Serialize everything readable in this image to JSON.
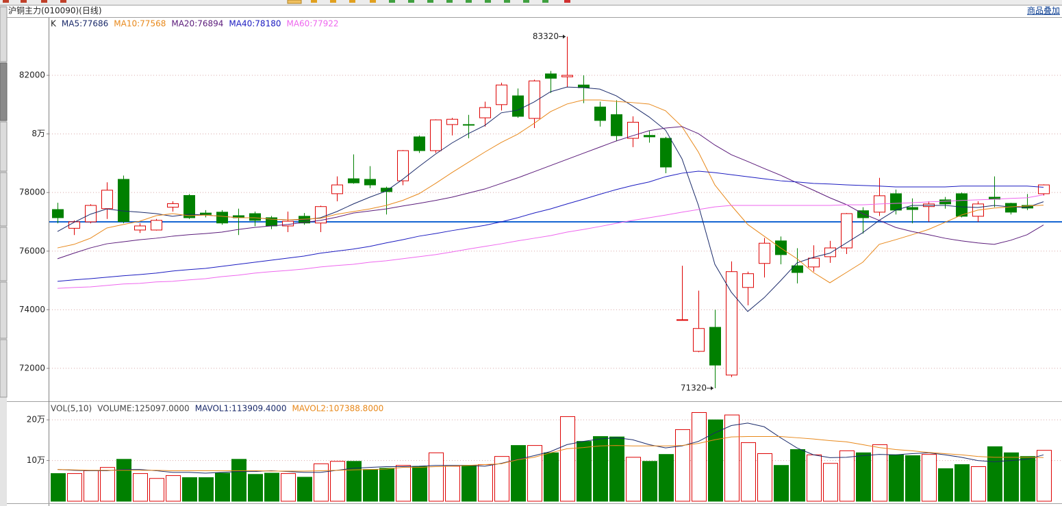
{
  "header": {
    "title": "沪铜主力(010090)(日线)",
    "overlay_button": "商品叠加"
  },
  "chart_data": [
    {
      "type": "candlestick",
      "label": "K",
      "open": [
        77420,
        76780,
        77000,
        77450,
        78450,
        76720,
        76720,
        77500,
        77900,
        77300,
        77330,
        77210,
        77280,
        77140,
        76860,
        77190,
        76960,
        77960,
        78470,
        78450,
        78150,
        78400,
        79900,
        79430,
        80320,
        80320,
        80550,
        81000,
        81300,
        80530,
        82050,
        81950,
        81670,
        80920,
        80660,
        79850,
        79950,
        79850,
        73640,
        72580,
        73400,
        71770,
        74760,
        75580,
        76350,
        75500,
        75460,
        75810,
        76110,
        77380,
        77330,
        77960,
        77490,
        77520,
        77750,
        77960,
        77190,
        77840,
        77630,
        77560,
        77960
      ],
      "high": [
        77650,
        77050,
        77600,
        78350,
        78580,
        76950,
        77100,
        77700,
        77950,
        77400,
        77400,
        77450,
        77350,
        77200,
        77350,
        77300,
        77550,
        78550,
        79300,
        78900,
        78200,
        79450,
        79950,
        80500,
        80550,
        80650,
        81100,
        81750,
        81550,
        81850,
        82150,
        83320,
        82000,
        81100,
        81150,
        80600,
        80100,
        79900,
        75500,
        74650,
        74000,
        75650,
        75300,
        76450,
        76500,
        76100,
        76200,
        76350,
        77300,
        77500,
        78500,
        78100,
        77800,
        77700,
        77850,
        78000,
        77700,
        78550,
        77650,
        77950,
        78280
      ],
      "low": [
        76950,
        76550,
        76950,
        77100,
        76950,
        76620,
        76700,
        77350,
        77100,
        77150,
        76900,
        76550,
        76850,
        76750,
        76650,
        76900,
        76650,
        77700,
        78300,
        78150,
        77250,
        78250,
        79350,
        79350,
        79950,
        79850,
        80250,
        80800,
        80550,
        80200,
        81400,
        81600,
        81050,
        80250,
        79750,
        79550,
        79700,
        78660,
        73640,
        72550,
        71320,
        71700,
        74150,
        75100,
        75550,
        74900,
        75300,
        75600,
        75900,
        76600,
        77200,
        77250,
        76950,
        77000,
        77450,
        77150,
        77000,
        77500,
        77250,
        77400,
        77900
      ],
      "close": [
        77140,
        77000,
        77560,
        78080,
        77010,
        76860,
        77050,
        77620,
        77140,
        77250,
        76960,
        77140,
        77050,
        76860,
        77020,
        76960,
        77520,
        78260,
        78330,
        78260,
        78030,
        79430,
        79430,
        80480,
        80500,
        80300,
        80900,
        81670,
        80600,
        81810,
        81900,
        82000,
        81580,
        80460,
        79940,
        80400,
        79900,
        78870,
        73660,
        73360,
        72110,
        75300,
        75230,
        76270,
        75880,
        75270,
        75760,
        76110,
        77280,
        77140,
        77890,
        77400,
        77420,
        77610,
        77610,
        77190,
        77610,
        77770,
        77330,
        77470,
        78260
      ],
      "up_color": "#dd0000",
      "down_color": "#008000",
      "ylim": [
        70900,
        83940
      ],
      "yticks": [
        72000,
        74000,
        76000,
        {
          "value": 80000,
          "label": "8万"
        },
        78000,
        82000
      ],
      "grid": true,
      "price_line": {
        "value": 77000,
        "color": "#1464d2"
      },
      "annotations": [
        {
          "value": 83320
        },
        {
          "value": 71320
        }
      ],
      "series": [
        {
          "name": "MA5:77686",
          "color": "#1a2a6a",
          "values": [
            76670,
            76980,
            77260,
            77440,
            77370,
            77330,
            77280,
            77190,
            77260,
            77230,
            77190,
            77140,
            77140,
            77090,
            77070,
            77070,
            77140,
            77350,
            77610,
            77840,
            78050,
            78450,
            78890,
            79310,
            79690,
            80010,
            80290,
            80720,
            80810,
            81090,
            81440,
            81600,
            81580,
            81530,
            81300,
            80950,
            80580,
            80130,
            79150,
            77560,
            75550,
            74600,
            73940,
            74410,
            74990,
            75600,
            75790,
            75930,
            76280,
            76630,
            77050,
            77400,
            77560,
            77560,
            77560,
            77510,
            77490,
            77560,
            77510,
            77490,
            77686
          ]
        },
        {
          "name": "MA10:77568",
          "color": "#e8881a",
          "values": [
            76110,
            76230,
            76440,
            76790,
            76910,
            77020,
            77210,
            77280,
            77210,
            77230,
            77190,
            77140,
            77140,
            77090,
            77070,
            77090,
            77120,
            77260,
            77350,
            77440,
            77560,
            77730,
            77960,
            78310,
            78680,
            79030,
            79380,
            79710,
            79990,
            80360,
            80760,
            81020,
            81160,
            81160,
            81110,
            81070,
            81020,
            80790,
            80250,
            79380,
            78260,
            77560,
            76910,
            76510,
            76110,
            75740,
            75270,
            74920,
            75270,
            75620,
            76230,
            76390,
            76560,
            76740,
            76980,
            77230,
            77400,
            77470,
            77510,
            77540,
            77568
          ]
        },
        {
          "name": "MA20:76894",
          "color": "#5a1a7a",
          "values": [
            75740,
            75930,
            76110,
            76250,
            76320,
            76390,
            76440,
            76510,
            76560,
            76600,
            76650,
            76740,
            76810,
            76860,
            76910,
            76980,
            77050,
            77160,
            77300,
            77370,
            77440,
            77540,
            77630,
            77730,
            77840,
            77980,
            78120,
            78310,
            78500,
            78710,
            78920,
            79130,
            79340,
            79550,
            79760,
            79940,
            80110,
            80200,
            80250,
            80010,
            79620,
            79290,
            79060,
            78820,
            78590,
            78330,
            78080,
            77820,
            77590,
            77280,
            77050,
            76810,
            76670,
            76560,
            76440,
            76350,
            76280,
            76230,
            76370,
            76560,
            76894
          ]
        },
        {
          "name": "MA40:78180",
          "color": "#1a1ac0",
          "values": [
            74970,
            75020,
            75060,
            75110,
            75160,
            75200,
            75250,
            75320,
            75370,
            75410,
            75480,
            75550,
            75620,
            75690,
            75760,
            75830,
            75930,
            76000,
            76070,
            76160,
            76280,
            76390,
            76510,
            76600,
            76700,
            76790,
            76880,
            77000,
            77140,
            77300,
            77440,
            77610,
            77770,
            77940,
            78100,
            78240,
            78360,
            78540,
            78660,
            78730,
            78680,
            78610,
            78540,
            78470,
            78400,
            78360,
            78310,
            78290,
            78260,
            78240,
            78220,
            78190,
            78190,
            78190,
            78190,
            78220,
            78220,
            78220,
            78220,
            78220,
            78180
          ]
        },
        {
          "name": "MA60:77922",
          "color": "#ee66ee",
          "values": [
            74730,
            74760,
            74780,
            74830,
            74880,
            74900,
            74950,
            74970,
            75020,
            75060,
            75130,
            75180,
            75250,
            75300,
            75340,
            75390,
            75460,
            75510,
            75550,
            75620,
            75670,
            75740,
            75810,
            75880,
            75970,
            76070,
            76160,
            76250,
            76350,
            76440,
            76530,
            76650,
            76740,
            76840,
            76950,
            77050,
            77140,
            77230,
            77330,
            77420,
            77510,
            77560,
            77560,
            77560,
            77560,
            77560,
            77560,
            77560,
            77580,
            77580,
            77610,
            77630,
            77650,
            77680,
            77700,
            77730,
            77750,
            77770,
            77800,
            77820,
            77922
          ]
        }
      ]
    },
    {
      "type": "volume",
      "label": "VOL(5,10)",
      "ylim": [
        0,
        239000
      ],
      "yticks": [
        {
          "value": 100000,
          "label": "10万"
        },
        {
          "value": 200000,
          "label": "20万"
        }
      ],
      "grid": true,
      "series": [
        {
          "name": "VOLUME:125097.0000",
          "color": "#444444",
          "style": "bars",
          "values": [
            68000,
            68000,
            75000,
            83000,
            103000,
            68000,
            56000,
            63000,
            58000,
            58000,
            69000,
            103000,
            66000,
            69000,
            68000,
            59000,
            92000,
            98000,
            98000,
            78000,
            81000,
            88000,
            85000,
            119000,
            86000,
            88000,
            90000,
            110000,
            137000,
            137000,
            119000,
            208000,
            147000,
            159000,
            158000,
            108000,
            98000,
            115000,
            176000,
            218000,
            200000,
            212000,
            144000,
            117000,
            88000,
            127000,
            114000,
            93000,
            124000,
            119000,
            139000,
            114000,
            112000,
            115000,
            80000,
            90000,
            85000,
            134000,
            119000,
            110000,
            125097
          ]
        },
        {
          "name": "MAVOL1:113909.4000",
          "color": "#1a2a6a",
          "values": [
            78000,
            76000,
            75000,
            75000,
            78000,
            78000,
            75000,
            71000,
            71000,
            69000,
            71000,
            73000,
            73000,
            75000,
            73000,
            71000,
            71000,
            76000,
            81000,
            83000,
            85000,
            85000,
            86000,
            88000,
            88000,
            88000,
            86000,
            93000,
            103000,
            112000,
            122000,
            139000,
            147000,
            153000,
            156000,
            151000,
            139000,
            131000,
            136000,
            147000,
            168000,
            186000,
            192000,
            183000,
            156000,
            131000,
            114000,
            107000,
            108000,
            112000,
            115000,
            114000,
            117000,
            119000,
            114000,
            108000,
            100000,
            97000,
            100000,
            103000,
            113909
          ]
        },
        {
          "name": "MAVOL2:107388.8000",
          "color": "#e8881a",
          "values": [
            78000,
            77000,
            76000,
            76000,
            76000,
            76000,
            76000,
            75000,
            75000,
            75000,
            75000,
            75000,
            75000,
            74000,
            74000,
            74000,
            75000,
            76000,
            77000,
            78000,
            79000,
            83000,
            83000,
            85000,
            86000,
            88000,
            90000,
            92000,
            102000,
            108000,
            119000,
            129000,
            132000,
            136000,
            137000,
            136000,
            136000,
            136000,
            137000,
            142000,
            151000,
            158000,
            159000,
            159000,
            159000,
            156000,
            153000,
            149000,
            146000,
            139000,
            132000,
            127000,
            124000,
            120000,
            117000,
            114000,
            110000,
            108000,
            108000,
            108000,
            107388
          ]
        }
      ]
    }
  ]
}
